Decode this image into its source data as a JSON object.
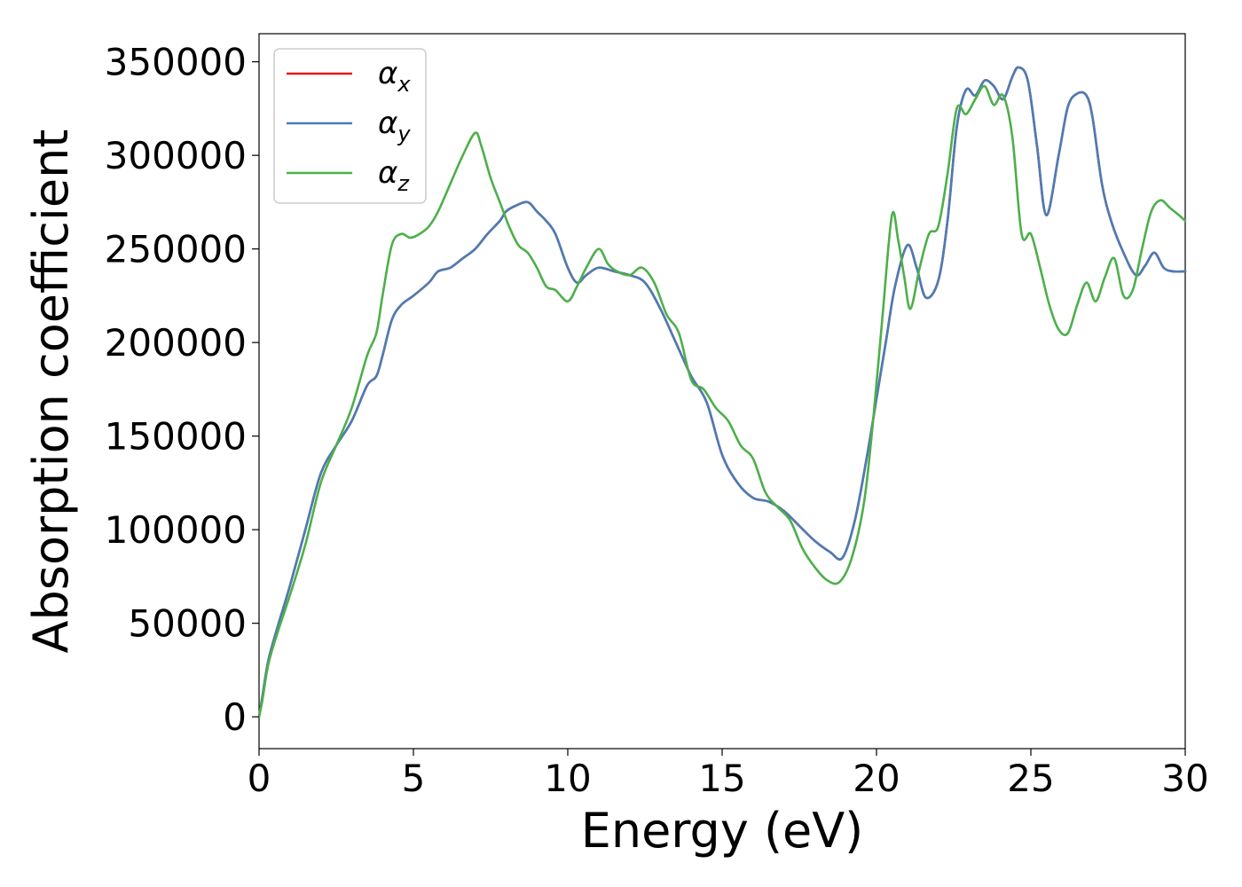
{
  "chart_data": {
    "type": "line",
    "xlabel": "Energy (eV)",
    "ylabel": "Absorption coefficient",
    "xlim": [
      0,
      30
    ],
    "ylim": [
      -17000,
      365000
    ],
    "xticks": [
      0,
      5,
      10,
      15,
      20,
      25,
      30
    ],
    "xtick_labels": [
      "0",
      "5",
      "10",
      "15",
      "20",
      "25",
      "30"
    ],
    "yticks": [
      0,
      50000,
      100000,
      150000,
      200000,
      250000,
      300000,
      350000
    ],
    "ytick_labels": [
      "0",
      "50000",
      "100000",
      "150000",
      "200000",
      "250000",
      "300000",
      "350000"
    ],
    "grid": false,
    "legend": "top-left",
    "series": [
      {
        "name": "αx",
        "legend_base": "α",
        "legend_sub": "x",
        "color": "#e41a1c",
        "x": [
          0,
          0.1,
          0.3,
          0.6,
          1.0,
          1.5,
          2.0,
          2.5,
          3.0,
          3.5,
          3.8,
          4.0,
          4.3,
          4.6,
          5.0,
          5.5,
          5.8,
          6.2,
          6.6,
          7.0,
          7.4,
          7.8,
          8.0,
          8.3,
          8.7,
          9.0,
          9.3,
          9.6,
          10.0,
          10.3,
          10.6,
          11.0,
          11.5,
          12.0,
          12.5,
          13.0,
          13.5,
          14.0,
          14.5,
          15.0,
          15.5,
          16.0,
          16.5,
          17.0,
          17.5,
          18.0,
          18.5,
          18.9,
          19.3,
          19.7,
          20.0,
          20.3,
          20.6,
          21.0,
          21.3,
          21.6,
          22.0,
          22.3,
          22.6,
          22.9,
          23.2,
          23.5,
          23.8,
          24.1,
          24.4,
          24.6,
          24.9,
          25.2,
          25.5,
          25.9,
          26.2,
          26.5,
          26.8,
          27.0,
          27.3,
          27.6,
          28.0,
          28.4,
          28.7,
          29.0,
          29.3,
          29.6,
          30.0
        ],
        "y": [
          0,
          10000,
          30000,
          48000,
          70000,
          100000,
          130000,
          145000,
          158000,
          177000,
          182000,
          193000,
          212000,
          220000,
          225000,
          232000,
          238000,
          240000,
          245000,
          250000,
          258000,
          265000,
          270000,
          273000,
          275000,
          270000,
          265000,
          258000,
          240000,
          232000,
          236000,
          240000,
          238000,
          236000,
          232000,
          218000,
          200000,
          182000,
          168000,
          140000,
          125000,
          117000,
          115000,
          110000,
          102000,
          94000,
          88000,
          85000,
          105000,
          140000,
          170000,
          200000,
          230000,
          252000,
          240000,
          224000,
          233000,
          265000,
          315000,
          335000,
          332000,
          340000,
          337000,
          330000,
          342000,
          347000,
          340000,
          305000,
          268000,
          300000,
          326000,
          333000,
          332000,
          320000,
          285000,
          265000,
          248000,
          236000,
          241000,
          248000,
          240000,
          238000,
          238000
        ]
      },
      {
        "name": "αy",
        "legend_base": "α",
        "legend_sub": "y",
        "color": "#4a7db5",
        "x": [
          0,
          0.1,
          0.3,
          0.6,
          1.0,
          1.5,
          2.0,
          2.5,
          3.0,
          3.5,
          3.8,
          4.0,
          4.3,
          4.6,
          5.0,
          5.5,
          5.8,
          6.2,
          6.6,
          7.0,
          7.4,
          7.8,
          8.0,
          8.3,
          8.7,
          9.0,
          9.3,
          9.6,
          10.0,
          10.3,
          10.6,
          11.0,
          11.5,
          12.0,
          12.5,
          13.0,
          13.5,
          14.0,
          14.5,
          15.0,
          15.5,
          16.0,
          16.5,
          17.0,
          17.5,
          18.0,
          18.5,
          18.9,
          19.3,
          19.7,
          20.0,
          20.3,
          20.6,
          21.0,
          21.3,
          21.6,
          22.0,
          22.3,
          22.6,
          22.9,
          23.2,
          23.5,
          23.8,
          24.1,
          24.4,
          24.6,
          24.9,
          25.2,
          25.5,
          25.9,
          26.2,
          26.5,
          26.8,
          27.0,
          27.3,
          27.6,
          28.0,
          28.4,
          28.7,
          29.0,
          29.3,
          29.6,
          30.0
        ],
        "y": [
          0,
          10000,
          30000,
          48000,
          70000,
          100000,
          130000,
          145000,
          158000,
          177000,
          182000,
          193000,
          212000,
          220000,
          225000,
          232000,
          238000,
          240000,
          245000,
          250000,
          258000,
          265000,
          270000,
          273000,
          275000,
          270000,
          265000,
          258000,
          240000,
          232000,
          236000,
          240000,
          238000,
          236000,
          232000,
          218000,
          200000,
          182000,
          168000,
          140000,
          125000,
          117000,
          115000,
          110000,
          102000,
          94000,
          88000,
          85000,
          105000,
          140000,
          170000,
          200000,
          230000,
          252000,
          240000,
          224000,
          233000,
          265000,
          315000,
          335000,
          332000,
          340000,
          337000,
          330000,
          342000,
          347000,
          340000,
          305000,
          268000,
          300000,
          326000,
          333000,
          332000,
          320000,
          285000,
          265000,
          248000,
          236000,
          241000,
          248000,
          240000,
          238000,
          238000
        ]
      },
      {
        "name": "αz",
        "legend_base": "α",
        "legend_sub": "z",
        "color": "#4daf4a",
        "x": [
          0,
          0.1,
          0.3,
          0.6,
          1.0,
          1.5,
          2.0,
          2.5,
          3.0,
          3.5,
          3.8,
          4.0,
          4.3,
          4.6,
          4.9,
          5.2,
          5.5,
          5.8,
          6.2,
          6.6,
          7.0,
          7.2,
          7.5,
          7.8,
          8.1,
          8.4,
          8.7,
          9.0,
          9.3,
          9.6,
          10.0,
          10.3,
          10.6,
          11.0,
          11.3,
          11.6,
          12.0,
          12.4,
          12.8,
          13.2,
          13.6,
          14.0,
          14.4,
          14.8,
          15.2,
          15.6,
          16.0,
          16.4,
          16.8,
          17.2,
          17.6,
          18.0,
          18.4,
          18.8,
          19.2,
          19.6,
          19.9,
          20.2,
          20.5,
          20.7,
          20.9,
          21.1,
          21.4,
          21.7,
          22.0,
          22.3,
          22.6,
          22.9,
          23.2,
          23.5,
          23.8,
          24.1,
          24.4,
          24.7,
          25.0,
          25.3,
          25.6,
          25.9,
          26.2,
          26.5,
          26.8,
          27.1,
          27.4,
          27.7,
          28.0,
          28.3,
          28.6,
          28.9,
          29.2,
          29.5,
          29.8,
          30.0
        ],
        "y": [
          0,
          8000,
          28000,
          45000,
          65000,
          92000,
          125000,
          145000,
          165000,
          193000,
          205000,
          225000,
          252000,
          258000,
          256000,
          258000,
          262000,
          270000,
          285000,
          300000,
          312000,
          305000,
          288000,
          275000,
          262000,
          252000,
          248000,
          240000,
          230000,
          228000,
          222000,
          230000,
          240000,
          250000,
          242000,
          238000,
          236000,
          240000,
          232000,
          215000,
          205000,
          180000,
          175000,
          165000,
          158000,
          145000,
          138000,
          120000,
          112000,
          105000,
          90000,
          80000,
          73000,
          72000,
          85000,
          115000,
          160000,
          215000,
          268000,
          255000,
          235000,
          218000,
          240000,
          258000,
          262000,
          290000,
          325000,
          322000,
          330000,
          337000,
          327000,
          332000,
          310000,
          258000,
          258000,
          240000,
          220000,
          207000,
          205000,
          220000,
          232000,
          222000,
          235000,
          245000,
          225000,
          228000,
          250000,
          270000,
          276000,
          272000,
          268000,
          265000
        ]
      }
    ]
  }
}
